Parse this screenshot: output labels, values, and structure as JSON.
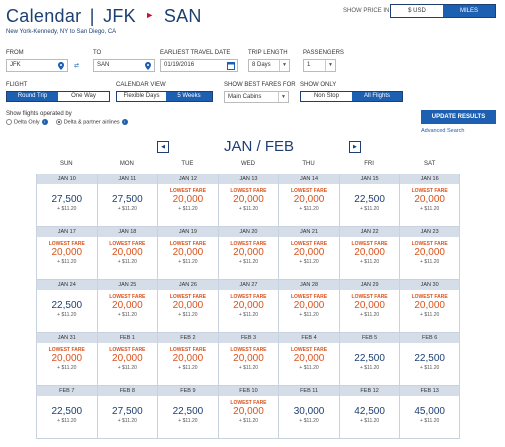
{
  "header": {
    "title_page": "Calendar",
    "title_sep": "|",
    "origin": "JFK",
    "destination": "SAN",
    "route_sub": "New York-Kennedy, NY to San Diego, CA",
    "show_price_in": "SHOW PRICE IN",
    "currency_options": [
      "$ USD",
      "MILES"
    ],
    "currency_selected": "MILES"
  },
  "form": {
    "from_label": "FROM",
    "from_value": "JFK",
    "to_label": "TO",
    "to_value": "SAN",
    "date_label": "EARLIEST TRAVEL DATE",
    "date_value": "01/19/2016",
    "trip_length_label": "TRIP LENGTH",
    "trip_length_value": "8 Days",
    "passengers_label": "PASSENGERS",
    "passengers_value": "1",
    "flight_label": "FLIGHT",
    "flight_options": [
      "Round Trip",
      "One Way"
    ],
    "flight_selected": "Round Trip",
    "calendar_view_label": "CALENDAR VIEW",
    "calendar_view_options": [
      "Flexible Days",
      "5 Weeks"
    ],
    "calendar_view_selected": "5 Weeks",
    "best_fares_label": "SHOW BEST FARES FOR",
    "best_fares_value": "Main Cabins",
    "show_only_label": "SHOW ONLY",
    "show_only_options": [
      "Non Stop",
      "All Flights"
    ],
    "show_only_selected": "All Flights",
    "operated_label": "Show flights operated by",
    "operated_options": [
      "Delta Only",
      "Delta & partner airlines"
    ],
    "operated_selected": "Delta & partner airlines",
    "update_button": "UPDATE RESULTS",
    "advanced_search": "Advanced Search"
  },
  "calendar": {
    "month_title": "JAN / FEB",
    "prev_arrow": "◀",
    "next_arrow": "▶",
    "days_of_week": [
      "SUN",
      "MON",
      "TUE",
      "WED",
      "THU",
      "FRI",
      "SAT"
    ],
    "lowest_label": "LOWEST FARE",
    "fee_text": "+ $11.20",
    "weeks": [
      [
        {
          "date": "JAN 10",
          "miles": "27,500",
          "lowest": false
        },
        {
          "date": "JAN 11",
          "miles": "27,500",
          "lowest": false
        },
        {
          "date": "JAN 12",
          "miles": "20,000",
          "lowest": true
        },
        {
          "date": "JAN 13",
          "miles": "20,000",
          "lowest": true
        },
        {
          "date": "JAN 14",
          "miles": "20,000",
          "lowest": true
        },
        {
          "date": "JAN 15",
          "miles": "22,500",
          "lowest": false
        },
        {
          "date": "JAN 16",
          "miles": "20,000",
          "lowest": true
        }
      ],
      [
        {
          "date": "JAN 17",
          "miles": "20,000",
          "lowest": true
        },
        {
          "date": "JAN 18",
          "miles": "20,000",
          "lowest": true
        },
        {
          "date": "JAN 19",
          "miles": "20,000",
          "lowest": true
        },
        {
          "date": "JAN 20",
          "miles": "20,000",
          "lowest": true
        },
        {
          "date": "JAN 21",
          "miles": "20,000",
          "lowest": true
        },
        {
          "date": "JAN 22",
          "miles": "20,000",
          "lowest": true
        },
        {
          "date": "JAN 23",
          "miles": "20,000",
          "lowest": true
        }
      ],
      [
        {
          "date": "JAN 24",
          "miles": "22,500",
          "lowest": false
        },
        {
          "date": "JAN 25",
          "miles": "20,000",
          "lowest": true
        },
        {
          "date": "JAN 26",
          "miles": "20,000",
          "lowest": true
        },
        {
          "date": "JAN 27",
          "miles": "20,000",
          "lowest": true
        },
        {
          "date": "JAN 28",
          "miles": "20,000",
          "lowest": true
        },
        {
          "date": "JAN 29",
          "miles": "20,000",
          "lowest": true
        },
        {
          "date": "JAN 30",
          "miles": "20,000",
          "lowest": true
        }
      ],
      [
        {
          "date": "JAN 31",
          "miles": "20,000",
          "lowest": true
        },
        {
          "date": "FEB 1",
          "miles": "20,000",
          "lowest": true
        },
        {
          "date": "FEB 2",
          "miles": "20,000",
          "lowest": true
        },
        {
          "date": "FEB 3",
          "miles": "20,000",
          "lowest": true
        },
        {
          "date": "FEB 4",
          "miles": "20,000",
          "lowest": true
        },
        {
          "date": "FEB 5",
          "miles": "22,500",
          "lowest": false
        },
        {
          "date": "FEB 6",
          "miles": "22,500",
          "lowest": false
        }
      ],
      [
        {
          "date": "FEB 7",
          "miles": "22,500",
          "lowest": false
        },
        {
          "date": "FEB 8",
          "miles": "27,500",
          "lowest": false
        },
        {
          "date": "FEB 9",
          "miles": "22,500",
          "lowest": false
        },
        {
          "date": "FEB 10",
          "miles": "20,000",
          "lowest": true
        },
        {
          "date": "FEB 11",
          "miles": "30,000",
          "lowest": false
        },
        {
          "date": "FEB 12",
          "miles": "42,500",
          "lowest": false
        },
        {
          "date": "FEB 13",
          "miles": "45,000",
          "lowest": false
        }
      ]
    ]
  },
  "colors": {
    "navy": "#1d3f73",
    "blue": "#1d5fb0",
    "lowest": "#d9531e",
    "date_bg": "#d5dde8"
  }
}
